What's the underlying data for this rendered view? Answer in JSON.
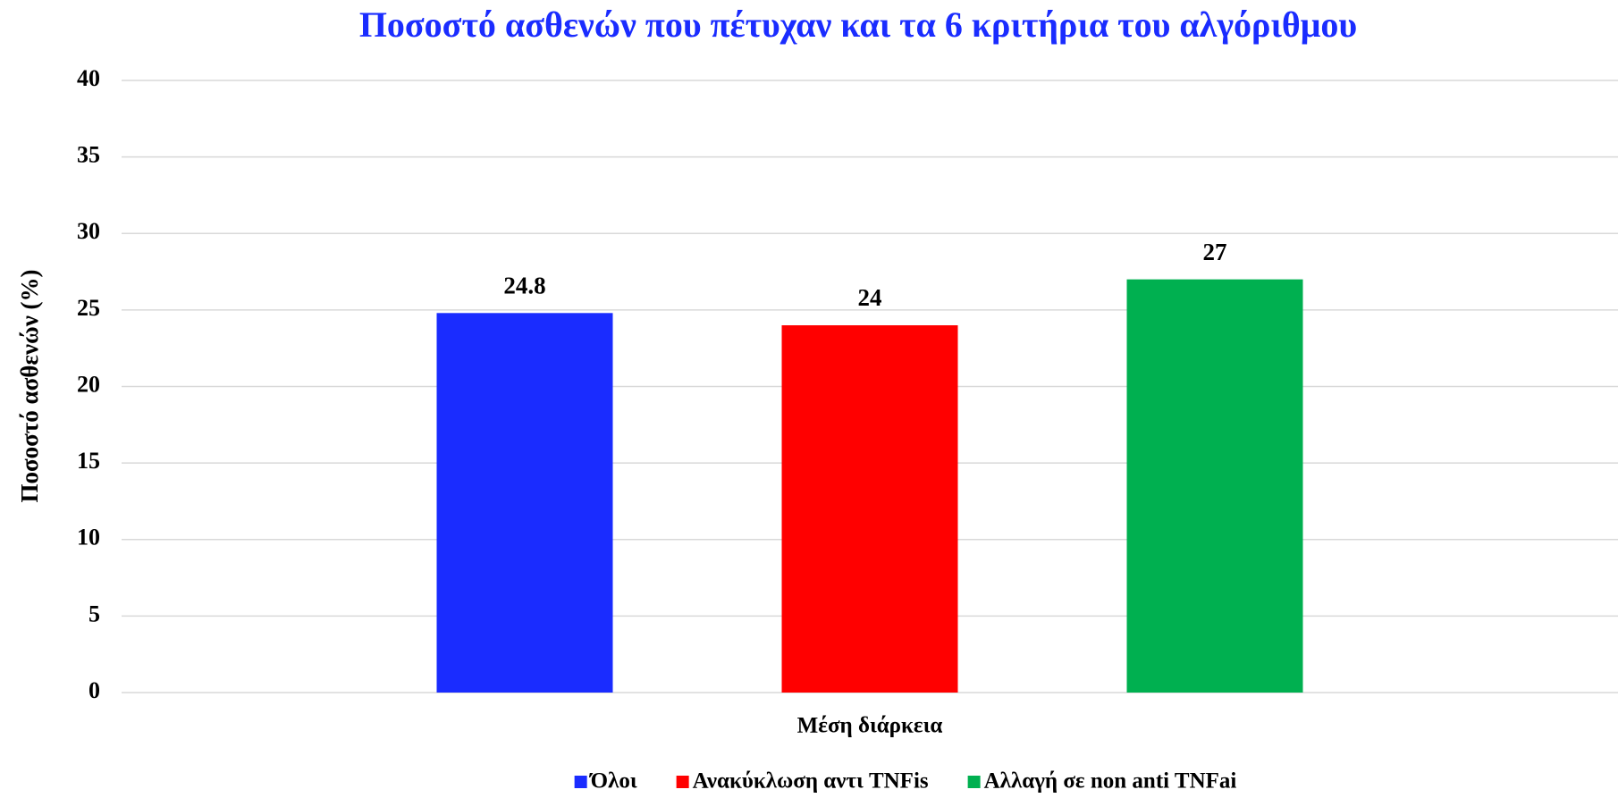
{
  "chart_data": {
    "type": "bar",
    "title": "Ποσοστό ασθενών που πέτυχαν και τα 6 κριτήρια του αλγόριθμου",
    "y_label": "Ποσοστό ασθενών (%)",
    "categories": [
      "Μέση διάρκεια"
    ],
    "series": [
      {
        "name": "Όλοι",
        "color": "#1a2cff",
        "values": [
          24.8
        ]
      },
      {
        "name": "Ανακύκλωση αντι TNFis",
        "color": "#ff0000",
        "values": [
          24
        ]
      },
      {
        "name": "Αλλαγή σε non anti TNFai",
        "color": "#00b050",
        "values": [
          27
        ]
      }
    ],
    "ylim": [
      0,
      40
    ],
    "yticks": [
      0,
      5,
      10,
      15,
      20,
      25,
      30,
      35,
      40
    ],
    "grid": true,
    "legend": "bottom",
    "data_labels": true
  }
}
